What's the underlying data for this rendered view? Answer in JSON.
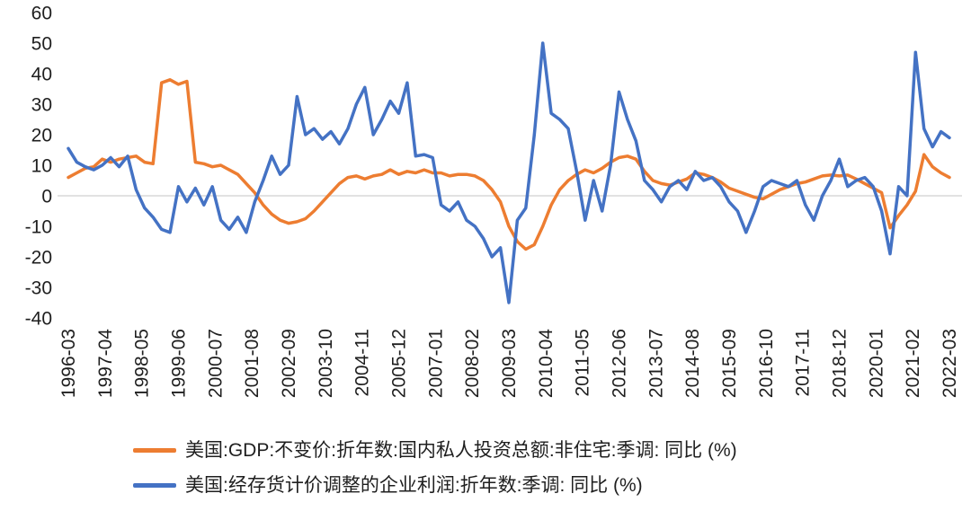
{
  "colors": {
    "background": "#FFFFFF",
    "zero_line": "#D9D9D9",
    "text": "#1F1F1F",
    "series_investment": "#ED7D31",
    "series_profit": "#4472C4"
  },
  "chart_data": {
    "type": "line",
    "title": "",
    "xlabel": "",
    "ylabel": "",
    "ylim": [
      -40,
      60
    ],
    "y_ticks": [
      60,
      50,
      40,
      30,
      20,
      10,
      0,
      -10,
      -20,
      -30,
      -40
    ],
    "grid": "zero-line-only",
    "legend_position": "bottom-left",
    "x_tick_labels": [
      "1996-03",
      "1997-04",
      "1998-05",
      "1999-06",
      "2000-07",
      "2001-08",
      "2002-09",
      "2003-10",
      "2004-11",
      "2005-12",
      "2007-01",
      "2008-02",
      "2009-03",
      "2010-04",
      "2011-05",
      "2012-06",
      "2013-07",
      "2014-08",
      "2015-09",
      "2016-10",
      "2017-11",
      "2018-12",
      "2020-01",
      "2021-02",
      "2022-03"
    ],
    "points_per_series": 105,
    "series": [
      {
        "name": "美国:GDP:不变价:折年数:国内私人投资总额:非住宅:季调: 同比 (%)",
        "color": "#ED7D31",
        "values": [
          6,
          7.5,
          9,
          9.5,
          12,
          11,
          12,
          12.5,
          13,
          11,
          10.5,
          37,
          38,
          36.5,
          37.5,
          11,
          10.5,
          9.5,
          10,
          8.5,
          7,
          4,
          1,
          -3,
          -6,
          -8,
          -9,
          -8.5,
          -7.5,
          -5,
          -2,
          1,
          4,
          6,
          6.5,
          5.5,
          6.5,
          7,
          8.5,
          7,
          8,
          7.5,
          8.5,
          7.5,
          7.5,
          6.5,
          7,
          7,
          6.5,
          5,
          2,
          -2,
          -10,
          -15,
          -17.5,
          -16,
          -10,
          -3,
          2,
          5,
          7,
          8.5,
          7.5,
          9,
          11,
          12.5,
          13,
          12,
          8,
          5,
          4,
          3.5,
          4.5,
          5.5,
          7.5,
          7,
          6,
          4.5,
          2.5,
          1.5,
          0.5,
          -0.5,
          -1,
          0.5,
          2,
          3,
          4,
          4.5,
          5.5,
          6.5,
          6.8,
          6.5,
          6.8,
          5.5,
          4,
          2.5,
          1,
          -10.5,
          -6.5,
          -3,
          1.5,
          13.5,
          9.5,
          7.5,
          6
        ]
      },
      {
        "name": "美国:经存货计价调整的企业利润:折年数:季调: 同比 (%)",
        "color": "#4472C4",
        "values": [
          15.5,
          11,
          9.5,
          8.5,
          10,
          12.5,
          9.5,
          13,
          2,
          -4,
          -7,
          -11,
          -12,
          3,
          -2,
          2.5,
          -3,
          3,
          -8,
          -11,
          -7,
          -12,
          -2,
          5,
          13,
          7,
          10,
          32.5,
          20,
          22,
          18.5,
          21,
          17,
          22,
          30,
          35.5,
          20,
          25,
          31,
          27,
          37,
          13,
          13.5,
          12.5,
          -3,
          -5,
          -2,
          -8,
          -10,
          -14,
          -20,
          -17,
          -35,
          -8,
          -4,
          20,
          50,
          27,
          25,
          22,
          8,
          -8,
          5,
          -5,
          10,
          34,
          25,
          18,
          5,
          2,
          -2,
          3,
          5,
          2,
          8,
          5,
          6,
          3,
          -2,
          -5,
          -12,
          -5,
          3,
          5,
          4,
          3,
          5,
          -3,
          -8,
          0,
          5,
          12,
          3,
          5,
          6,
          3,
          -5,
          -19,
          3,
          0,
          47,
          22,
          16,
          21,
          19
        ]
      }
    ]
  }
}
